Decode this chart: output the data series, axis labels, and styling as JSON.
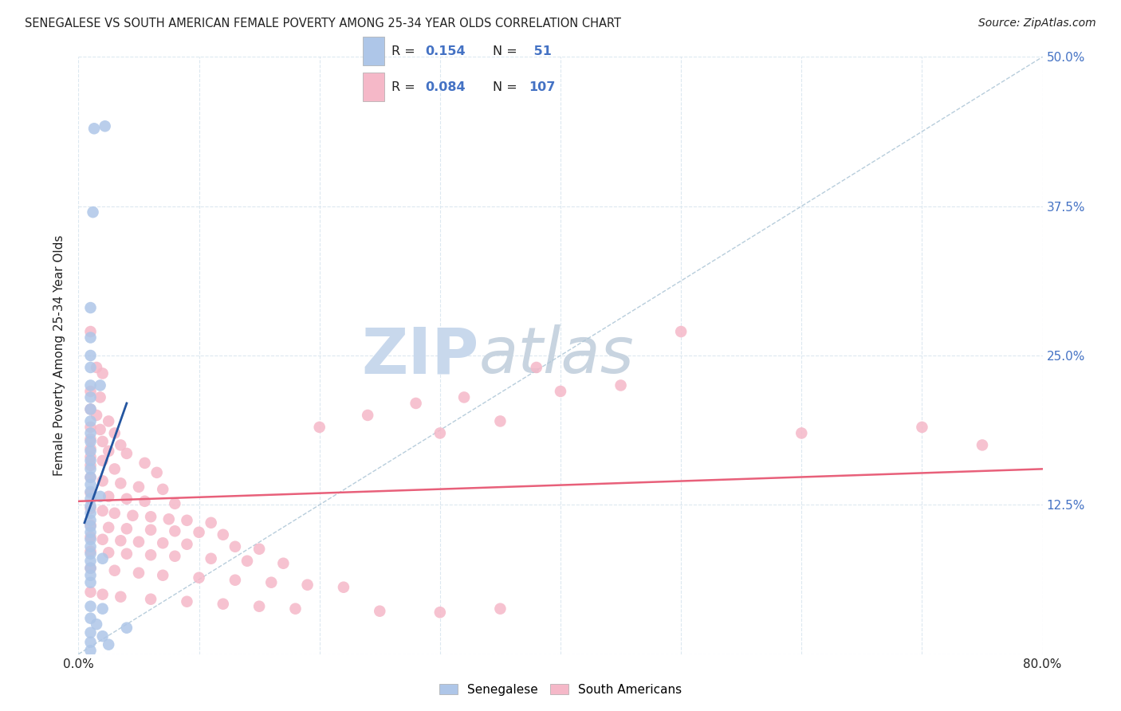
{
  "title": "SENEGALESE VS SOUTH AMERICAN FEMALE POVERTY AMONG 25-34 YEAR OLDS CORRELATION CHART",
  "source": "Source: ZipAtlas.com",
  "ylabel": "Female Poverty Among 25-34 Year Olds",
  "xlim": [
    0.0,
    0.8
  ],
  "ylim": [
    0.0,
    0.5
  ],
  "yticks": [
    0.0,
    0.125,
    0.25,
    0.375,
    0.5
  ],
  "yticklabels_right": [
    "",
    "12.5%",
    "25.0%",
    "37.5%",
    "50.0%"
  ],
  "R_senegalese": "0.154",
  "N_senegalese": " 51",
  "R_south_american": "0.084",
  "N_south_american": "107",
  "senegalese_color": "#aec6e8",
  "south_american_color": "#f5b8c8",
  "trend_senegalese_color": "#2355a0",
  "trend_south_american_color": "#e8607a",
  "ref_line_color": "#b0c8d8",
  "background_color": "#ffffff",
  "grid_color": "#dce8f0",
  "label_color": "#4472c4",
  "text_color": "#222222",
  "watermark_zip_color": "#c8d8ec",
  "watermark_atlas_color": "#c8d4e0",
  "senegalese_scatter": [
    [
      0.013,
      0.44
    ],
    [
      0.022,
      0.442
    ],
    [
      0.012,
      0.37
    ],
    [
      0.01,
      0.29
    ],
    [
      0.01,
      0.265
    ],
    [
      0.01,
      0.25
    ],
    [
      0.01,
      0.24
    ],
    [
      0.01,
      0.225
    ],
    [
      0.018,
      0.225
    ],
    [
      0.01,
      0.215
    ],
    [
      0.01,
      0.205
    ],
    [
      0.01,
      0.195
    ],
    [
      0.01,
      0.185
    ],
    [
      0.01,
      0.178
    ],
    [
      0.01,
      0.17
    ],
    [
      0.01,
      0.162
    ],
    [
      0.01,
      0.155
    ],
    [
      0.01,
      0.148
    ],
    [
      0.01,
      0.142
    ],
    [
      0.01,
      0.136
    ],
    [
      0.01,
      0.13
    ],
    [
      0.018,
      0.132
    ],
    [
      0.01,
      0.124
    ],
    [
      0.01,
      0.118
    ],
    [
      0.01,
      0.112
    ],
    [
      0.01,
      0.107
    ],
    [
      0.01,
      0.102
    ],
    [
      0.01,
      0.096
    ],
    [
      0.01,
      0.09
    ],
    [
      0.01,
      0.084
    ],
    [
      0.01,
      0.078
    ],
    [
      0.02,
      0.08
    ],
    [
      0.01,
      0.072
    ],
    [
      0.01,
      0.066
    ],
    [
      0.01,
      0.06
    ],
    [
      0.01,
      0.04
    ],
    [
      0.02,
      0.038
    ],
    [
      0.01,
      0.03
    ],
    [
      0.015,
      0.025
    ],
    [
      0.01,
      0.018
    ],
    [
      0.02,
      0.015
    ],
    [
      0.01,
      0.01
    ],
    [
      0.025,
      0.008
    ],
    [
      0.01,
      0.003
    ],
    [
      0.04,
      0.022
    ]
  ],
  "south_american_scatter": [
    [
      0.01,
      0.27
    ],
    [
      0.015,
      0.24
    ],
    [
      0.02,
      0.235
    ],
    [
      0.01,
      0.22
    ],
    [
      0.018,
      0.215
    ],
    [
      0.01,
      0.205
    ],
    [
      0.015,
      0.2
    ],
    [
      0.025,
      0.195
    ],
    [
      0.01,
      0.19
    ],
    [
      0.018,
      0.188
    ],
    [
      0.03,
      0.185
    ],
    [
      0.01,
      0.18
    ],
    [
      0.02,
      0.178
    ],
    [
      0.035,
      0.175
    ],
    [
      0.01,
      0.172
    ],
    [
      0.025,
      0.17
    ],
    [
      0.04,
      0.168
    ],
    [
      0.01,
      0.165
    ],
    [
      0.02,
      0.162
    ],
    [
      0.055,
      0.16
    ],
    [
      0.01,
      0.158
    ],
    [
      0.03,
      0.155
    ],
    [
      0.065,
      0.152
    ],
    [
      0.01,
      0.148
    ],
    [
      0.02,
      0.145
    ],
    [
      0.035,
      0.143
    ],
    [
      0.05,
      0.14
    ],
    [
      0.07,
      0.138
    ],
    [
      0.01,
      0.135
    ],
    [
      0.025,
      0.132
    ],
    [
      0.04,
      0.13
    ],
    [
      0.055,
      0.128
    ],
    [
      0.08,
      0.126
    ],
    [
      0.01,
      0.122
    ],
    [
      0.02,
      0.12
    ],
    [
      0.03,
      0.118
    ],
    [
      0.045,
      0.116
    ],
    [
      0.06,
      0.115
    ],
    [
      0.075,
      0.113
    ],
    [
      0.09,
      0.112
    ],
    [
      0.11,
      0.11
    ],
    [
      0.01,
      0.108
    ],
    [
      0.025,
      0.106
    ],
    [
      0.04,
      0.105
    ],
    [
      0.06,
      0.104
    ],
    [
      0.08,
      0.103
    ],
    [
      0.1,
      0.102
    ],
    [
      0.12,
      0.1
    ],
    [
      0.01,
      0.098
    ],
    [
      0.02,
      0.096
    ],
    [
      0.035,
      0.095
    ],
    [
      0.05,
      0.094
    ],
    [
      0.07,
      0.093
    ],
    [
      0.09,
      0.092
    ],
    [
      0.13,
      0.09
    ],
    [
      0.15,
      0.088
    ],
    [
      0.01,
      0.086
    ],
    [
      0.025,
      0.085
    ],
    [
      0.04,
      0.084
    ],
    [
      0.06,
      0.083
    ],
    [
      0.08,
      0.082
    ],
    [
      0.11,
      0.08
    ],
    [
      0.14,
      0.078
    ],
    [
      0.17,
      0.076
    ],
    [
      0.01,
      0.072
    ],
    [
      0.03,
      0.07
    ],
    [
      0.05,
      0.068
    ],
    [
      0.07,
      0.066
    ],
    [
      0.1,
      0.064
    ],
    [
      0.13,
      0.062
    ],
    [
      0.16,
      0.06
    ],
    [
      0.19,
      0.058
    ],
    [
      0.22,
      0.056
    ],
    [
      0.01,
      0.052
    ],
    [
      0.02,
      0.05
    ],
    [
      0.035,
      0.048
    ],
    [
      0.06,
      0.046
    ],
    [
      0.09,
      0.044
    ],
    [
      0.12,
      0.042
    ],
    [
      0.15,
      0.04
    ],
    [
      0.18,
      0.038
    ],
    [
      0.25,
      0.036
    ],
    [
      0.3,
      0.035
    ],
    [
      0.35,
      0.038
    ],
    [
      0.2,
      0.19
    ],
    [
      0.3,
      0.185
    ],
    [
      0.35,
      0.195
    ],
    [
      0.24,
      0.2
    ],
    [
      0.28,
      0.21
    ],
    [
      0.32,
      0.215
    ],
    [
      0.4,
      0.22
    ],
    [
      0.45,
      0.225
    ],
    [
      0.38,
      0.24
    ],
    [
      0.5,
      0.27
    ],
    [
      0.6,
      0.185
    ],
    [
      0.7,
      0.19
    ],
    [
      0.75,
      0.175
    ]
  ]
}
